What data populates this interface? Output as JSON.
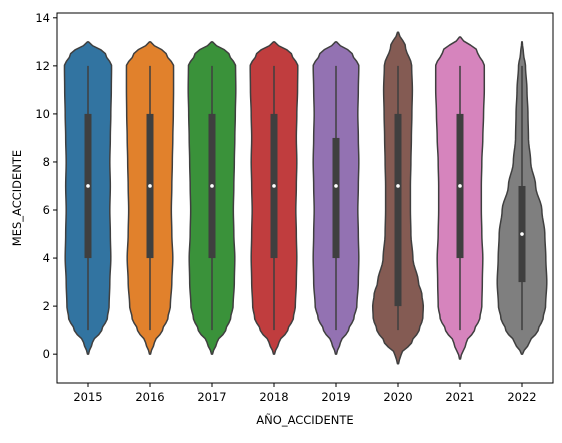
{
  "chart_data": {
    "type": "violin",
    "xlabel": "AÑO_ACCIDENTE",
    "ylabel": "MES_ACCIDENTE",
    "ylim": [
      -1.2,
      14.2
    ],
    "yticks": [
      0,
      2,
      4,
      6,
      8,
      10,
      12,
      14
    ],
    "grid": false,
    "categories": [
      "2015",
      "2016",
      "2017",
      "2018",
      "2019",
      "2020",
      "2021",
      "2022"
    ],
    "colors": [
      "#3274a1",
      "#e1812c",
      "#3a923a",
      "#c03d3e",
      "#9372b2",
      "#845b53",
      "#d684bd",
      "#7f7f7f"
    ],
    "violins": [
      {
        "category": "2015",
        "min": 1,
        "q1": 4,
        "median": 7,
        "q3": 10,
        "max": 12,
        "extent": [
          0,
          13
        ],
        "profile": [
          [
            0,
            0.02
          ],
          [
            0.5,
            0.18
          ],
          [
            1,
            0.55
          ],
          [
            1.5,
            0.78
          ],
          [
            2,
            0.85
          ],
          [
            3,
            0.88
          ],
          [
            4,
            0.92
          ],
          [
            5,
            0.9
          ],
          [
            6,
            0.88
          ],
          [
            7,
            0.9
          ],
          [
            8,
            0.88
          ],
          [
            9,
            0.9
          ],
          [
            10,
            0.92
          ],
          [
            11,
            0.94
          ],
          [
            12,
            0.95
          ],
          [
            12.5,
            0.7
          ],
          [
            13,
            0.02
          ]
        ]
      },
      {
        "category": "2016",
        "min": 1,
        "q1": 4,
        "median": 7,
        "q3": 10,
        "max": 12,
        "extent": [
          0,
          13
        ],
        "profile": [
          [
            0,
            0.02
          ],
          [
            0.5,
            0.18
          ],
          [
            1,
            0.5
          ],
          [
            1.5,
            0.72
          ],
          [
            2,
            0.82
          ],
          [
            3,
            0.88
          ],
          [
            4,
            0.92
          ],
          [
            5,
            0.88
          ],
          [
            6,
            0.86
          ],
          [
            7,
            0.88
          ],
          [
            8,
            0.9
          ],
          [
            9,
            0.92
          ],
          [
            10,
            0.94
          ],
          [
            11,
            0.95
          ],
          [
            12,
            0.95
          ],
          [
            12.5,
            0.65
          ],
          [
            13,
            0.02
          ]
        ]
      },
      {
        "category": "2017",
        "min": 1,
        "q1": 4,
        "median": 7,
        "q3": 10,
        "max": 12,
        "extent": [
          0,
          13
        ],
        "profile": [
          [
            0,
            0.02
          ],
          [
            0.5,
            0.2
          ],
          [
            1,
            0.55
          ],
          [
            1.5,
            0.75
          ],
          [
            2,
            0.85
          ],
          [
            3,
            0.9
          ],
          [
            4,
            0.92
          ],
          [
            5,
            0.88
          ],
          [
            6,
            0.86
          ],
          [
            7,
            0.88
          ],
          [
            8,
            0.9
          ],
          [
            9,
            0.92
          ],
          [
            10,
            0.94
          ],
          [
            11,
            0.96
          ],
          [
            12,
            0.95
          ],
          [
            12.5,
            0.68
          ],
          [
            13,
            0.02
          ]
        ]
      },
      {
        "category": "2018",
        "min": 1,
        "q1": 4,
        "median": 7,
        "q3": 10,
        "max": 12,
        "extent": [
          0,
          13
        ],
        "profile": [
          [
            0,
            0.02
          ],
          [
            0.5,
            0.2
          ],
          [
            1,
            0.55
          ],
          [
            1.5,
            0.78
          ],
          [
            2,
            0.86
          ],
          [
            3,
            0.9
          ],
          [
            4,
            0.92
          ],
          [
            5,
            0.9
          ],
          [
            6,
            0.88
          ],
          [
            7,
            0.9
          ],
          [
            8,
            0.92
          ],
          [
            9,
            0.9
          ],
          [
            10,
            0.92
          ],
          [
            11,
            0.95
          ],
          [
            12,
            0.96
          ],
          [
            12.5,
            0.7
          ],
          [
            13,
            0.02
          ]
        ]
      },
      {
        "category": "2019",
        "min": 1,
        "q1": 4,
        "median": 7,
        "q3": 9,
        "max": 12,
        "extent": [
          0,
          13
        ],
        "profile": [
          [
            0,
            0.02
          ],
          [
            0.5,
            0.18
          ],
          [
            1,
            0.5
          ],
          [
            1.5,
            0.72
          ],
          [
            2,
            0.84
          ],
          [
            3,
            0.9
          ],
          [
            4,
            0.92
          ],
          [
            5,
            0.9
          ],
          [
            6,
            0.88
          ],
          [
            7,
            0.9
          ],
          [
            8,
            0.92
          ],
          [
            9,
            0.9
          ],
          [
            10,
            0.88
          ],
          [
            11,
            0.9
          ],
          [
            12,
            0.92
          ],
          [
            12.5,
            0.65
          ],
          [
            13,
            0.02
          ]
        ]
      },
      {
        "category": "2020",
        "min": 1,
        "q1": 2,
        "median": 7,
        "q3": 10,
        "max": 12,
        "extent": [
          -0.4,
          13.4
        ],
        "profile": [
          [
            -0.4,
            0.02
          ],
          [
            0,
            0.12
          ],
          [
            0.5,
            0.55
          ],
          [
            1,
            0.85
          ],
          [
            1.5,
            1.0
          ],
          [
            2,
            1.02
          ],
          [
            2.5,
            0.96
          ],
          [
            3,
            0.82
          ],
          [
            4,
            0.6
          ],
          [
            5,
            0.52
          ],
          [
            6,
            0.5
          ],
          [
            7,
            0.5
          ],
          [
            8,
            0.52
          ],
          [
            9,
            0.54
          ],
          [
            10,
            0.56
          ],
          [
            11,
            0.58
          ],
          [
            12,
            0.55
          ],
          [
            12.8,
            0.3
          ],
          [
            13.4,
            0.02
          ]
        ]
      },
      {
        "category": "2021",
        "min": 1,
        "q1": 4,
        "median": 7,
        "q3": 10,
        "max": 12,
        "extent": [
          -0.2,
          13.2
        ],
        "profile": [
          [
            -0.2,
            0.02
          ],
          [
            0.5,
            0.25
          ],
          [
            1,
            0.58
          ],
          [
            1.5,
            0.8
          ],
          [
            2,
            0.88
          ],
          [
            3,
            0.9
          ],
          [
            4,
            0.92
          ],
          [
            5,
            0.88
          ],
          [
            6,
            0.86
          ],
          [
            7,
            0.86
          ],
          [
            8,
            0.88
          ],
          [
            9,
            0.92
          ],
          [
            10,
            0.95
          ],
          [
            11,
            0.98
          ],
          [
            12,
            0.98
          ],
          [
            12.6,
            0.7
          ],
          [
            13.2,
            0.02
          ]
        ]
      },
      {
        "category": "2022",
        "min": 1,
        "q1": 3,
        "median": 5,
        "q3": 7,
        "max": 12,
        "extent": [
          0,
          13
        ],
        "profile": [
          [
            0,
            0.02
          ],
          [
            0.5,
            0.3
          ],
          [
            1,
            0.65
          ],
          [
            1.5,
            0.85
          ],
          [
            2,
            0.95
          ],
          [
            3,
            1.0
          ],
          [
            4,
            0.96
          ],
          [
            5,
            0.92
          ],
          [
            6,
            0.8
          ],
          [
            7,
            0.55
          ],
          [
            8,
            0.35
          ],
          [
            9,
            0.26
          ],
          [
            10,
            0.24
          ],
          [
            11,
            0.2
          ],
          [
            12,
            0.14
          ],
          [
            12.5,
            0.06
          ],
          [
            13,
            0.01
          ]
        ]
      }
    ]
  }
}
